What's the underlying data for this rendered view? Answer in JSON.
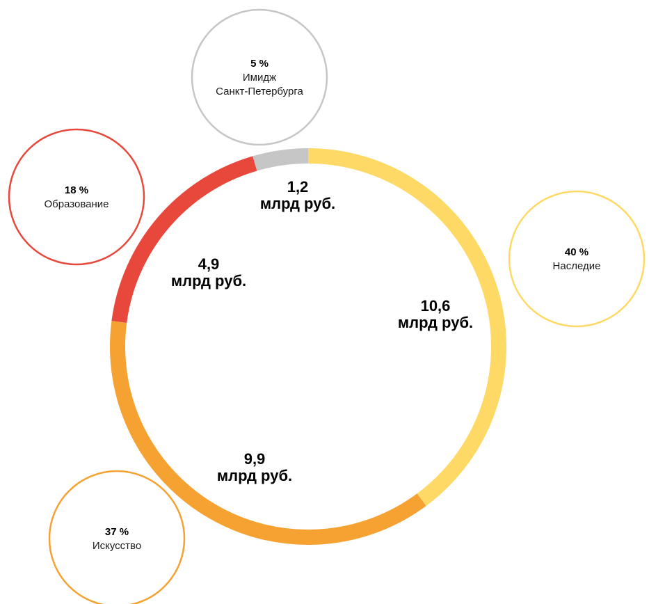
{
  "chart_data": {
    "type": "pie",
    "title": "",
    "unit": "млрд руб.",
    "series": [
      {
        "key": "heritage",
        "name": "Наследие",
        "name_lines": [
          "Наследие"
        ],
        "share": 40,
        "share_label": "40 %",
        "value": 10.6,
        "value_text": "10,6",
        "color": "#FFD966"
      },
      {
        "key": "art",
        "name": "Искусство",
        "name_lines": [
          "Искусство"
        ],
        "share": 37,
        "share_label": "37 %",
        "value": 9.9,
        "value_text": "9,9",
        "color": "#F5A233"
      },
      {
        "key": "education",
        "name": "Образование",
        "name_lines": [
          "Образование"
        ],
        "share": 18,
        "share_label": "18 %",
        "value": 4.9,
        "value_text": "4,9",
        "color": "#E8483C"
      },
      {
        "key": "image",
        "name": "Имидж Санкт-Петербурга",
        "name_lines": [
          "Имидж",
          "Санкт-Петербурга"
        ],
        "share": 5,
        "share_label": "5 %",
        "value": 1.2,
        "value_text": "1,2",
        "color": "#C6C6C6"
      }
    ]
  }
}
